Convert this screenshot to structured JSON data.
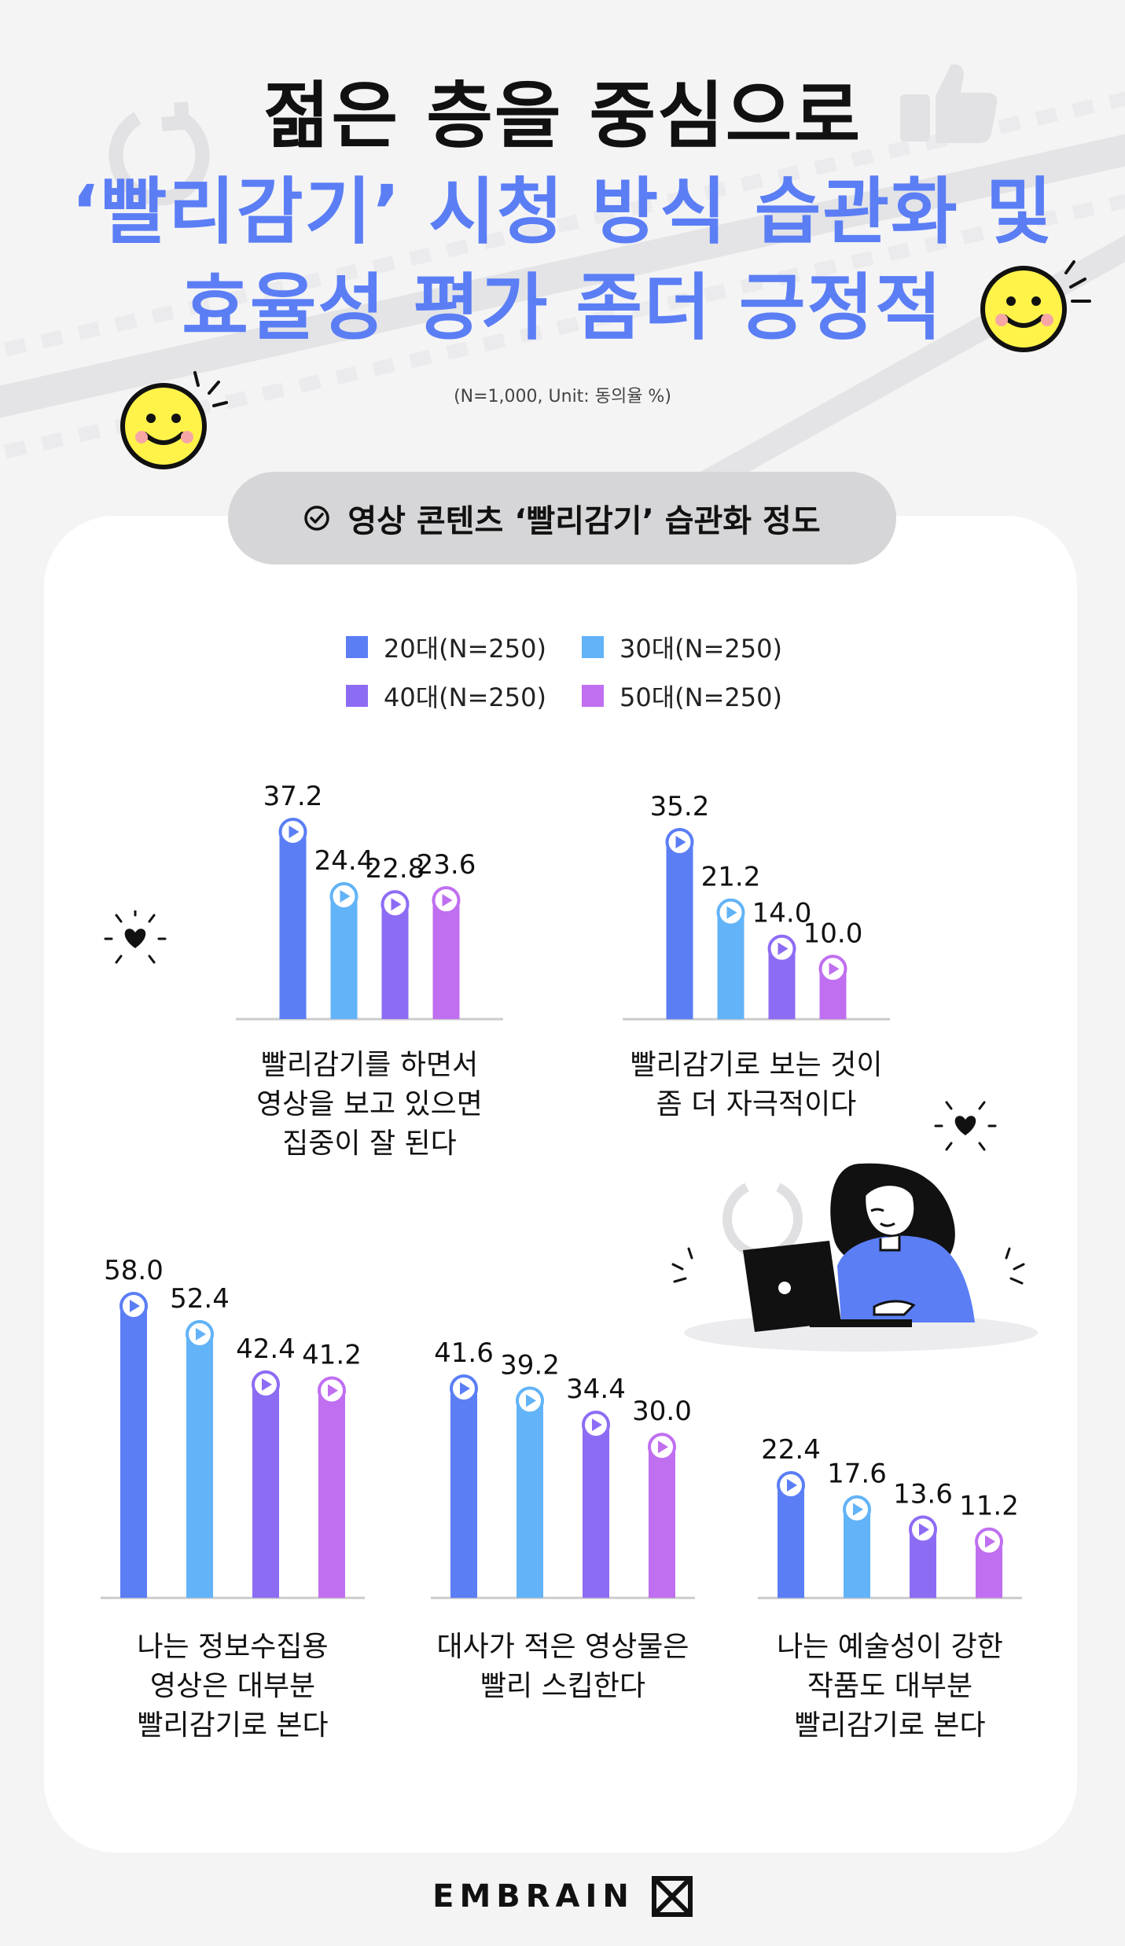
{
  "title": {
    "line1": "젊은 층을 중심으로",
    "line2": "‘빨리감기’ 시청 방식 습관화 및",
    "line3": "효율성 평가 좀더 긍정적"
  },
  "meta_note": "(N=1,000, Unit: 동의율 %)",
  "section_label": "영상 콘텐츠 ‘빨리감기’ 습관화 정도",
  "colors": {
    "20s": "#5b7ef5",
    "30s": "#62b3f7",
    "40s": "#8d6cf4",
    "50s": "#c06ff0",
    "title_blue": "#5b7ef5",
    "axis": "#cccccc"
  },
  "icons": [
    "check-circle-icon",
    "play-icon",
    "smiley-icon",
    "heart-icon",
    "sparkle-icon",
    "replay-icon",
    "thumbs-up-icon",
    "film-strip-icon",
    "laptop-icon",
    "embrain-logo-icon"
  ],
  "legend": [
    {
      "label": "20대(N=250)",
      "color": "#5b7ef5"
    },
    {
      "label": "30대(N=250)",
      "color": "#62b3f7"
    },
    {
      "label": "40대(N=250)",
      "color": "#8d6cf4"
    },
    {
      "label": "50대(N=250)",
      "color": "#c06ff0"
    }
  ],
  "chart_data": [
    {
      "type": "bar",
      "categories": [
        "20대(N=250)",
        "30대(N=250)",
        "40대(N=250)",
        "50대(N=250)"
      ],
      "values": [
        37.2,
        24.4,
        22.8,
        23.6
      ],
      "caption": [
        "빨리감기를 하면서",
        "영상을 보고 있으면",
        "집중이 잘 된다"
      ]
    },
    {
      "type": "bar",
      "categories": [
        "20대(N=250)",
        "30대(N=250)",
        "40대(N=250)",
        "50대(N=250)"
      ],
      "values": [
        35.2,
        21.2,
        14.0,
        10.0
      ],
      "caption": [
        "빨리감기로 보는 것이",
        "좀 더 자극적이다"
      ]
    },
    {
      "type": "bar",
      "categories": [
        "20대(N=250)",
        "30대(N=250)",
        "40대(N=250)",
        "50대(N=250)"
      ],
      "values": [
        58.0,
        52.4,
        42.4,
        41.2
      ],
      "caption": [
        "나는 정보수집용",
        "영상은 대부분",
        "빨리감기로 본다"
      ]
    },
    {
      "type": "bar",
      "categories": [
        "20대(N=250)",
        "30대(N=250)",
        "40대(N=250)",
        "50대(N=250)"
      ],
      "values": [
        41.6,
        39.2,
        34.4,
        30.0
      ],
      "caption": [
        "대사가 적은 영상물은",
        "빨리 스킵한다"
      ]
    },
    {
      "type": "bar",
      "categories": [
        "20대(N=250)",
        "30대(N=250)",
        "40대(N=250)",
        "50대(N=250)"
      ],
      "values": [
        22.4,
        17.6,
        13.6,
        11.2
      ],
      "caption": [
        "나는 예술성이 강한",
        "작품도 대부분",
        "빨리감기로 본다"
      ]
    }
  ],
  "logo_text": "EMBRAIN"
}
